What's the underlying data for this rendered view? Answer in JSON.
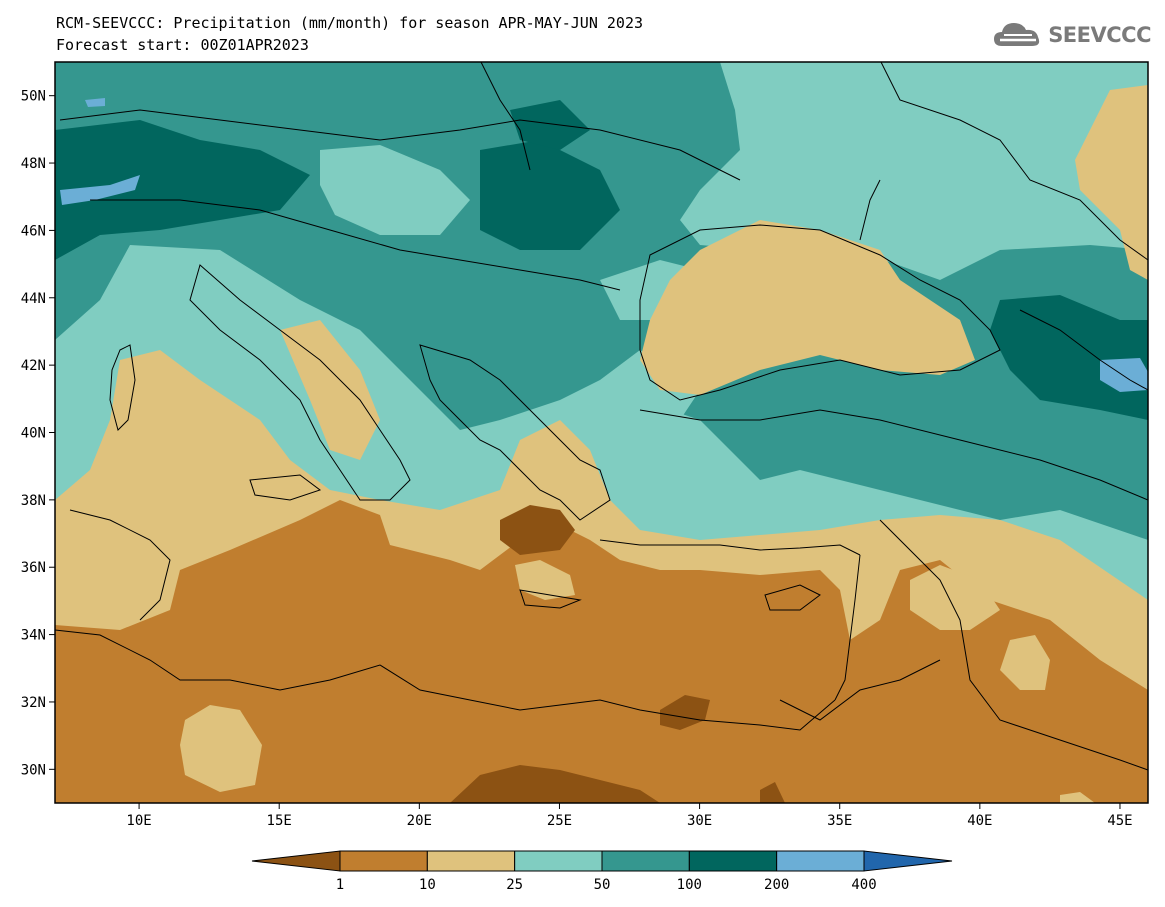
{
  "header": {
    "title_line_1": "RCM-SEEVCCC: Precipitation (mm/month) for season APR-MAY-JUN 2023",
    "title_line_2": "Forecast start: 00Z01APR2023",
    "logo_text": "SEEVCCC"
  },
  "map": {
    "lon_range": [
      7,
      46
    ],
    "lat_range": [
      29,
      51
    ],
    "lon_ticks": [
      {
        "value": 10,
        "label": "10E"
      },
      {
        "value": 15,
        "label": "15E"
      },
      {
        "value": 20,
        "label": "20E"
      },
      {
        "value": 25,
        "label": "25E"
      },
      {
        "value": 30,
        "label": "30E"
      },
      {
        "value": 35,
        "label": "35E"
      },
      {
        "value": 40,
        "label": "40E"
      },
      {
        "value": 45,
        "label": "45E"
      }
    ],
    "lat_ticks": [
      {
        "value": 50,
        "label": "50N"
      },
      {
        "value": 48,
        "label": "48N"
      },
      {
        "value": 46,
        "label": "46N"
      },
      {
        "value": 44,
        "label": "44N"
      },
      {
        "value": 42,
        "label": "42N"
      },
      {
        "value": 40,
        "label": "40N"
      },
      {
        "value": 38,
        "label": "38N"
      },
      {
        "value": 36,
        "label": "36N"
      },
      {
        "value": 34,
        "label": "34N"
      },
      {
        "value": 32,
        "label": "32N"
      },
      {
        "value": 30,
        "label": "30N"
      }
    ]
  },
  "colorbar": {
    "colors": [
      "#8c5213",
      "#c07e2f",
      "#dfc27d",
      "#80cdc1",
      "#35978f",
      "#01665e",
      "#6baed6",
      "#2166ac"
    ],
    "labels": [
      "1",
      "10",
      "25",
      "50",
      "100",
      "200",
      "400"
    ]
  }
}
